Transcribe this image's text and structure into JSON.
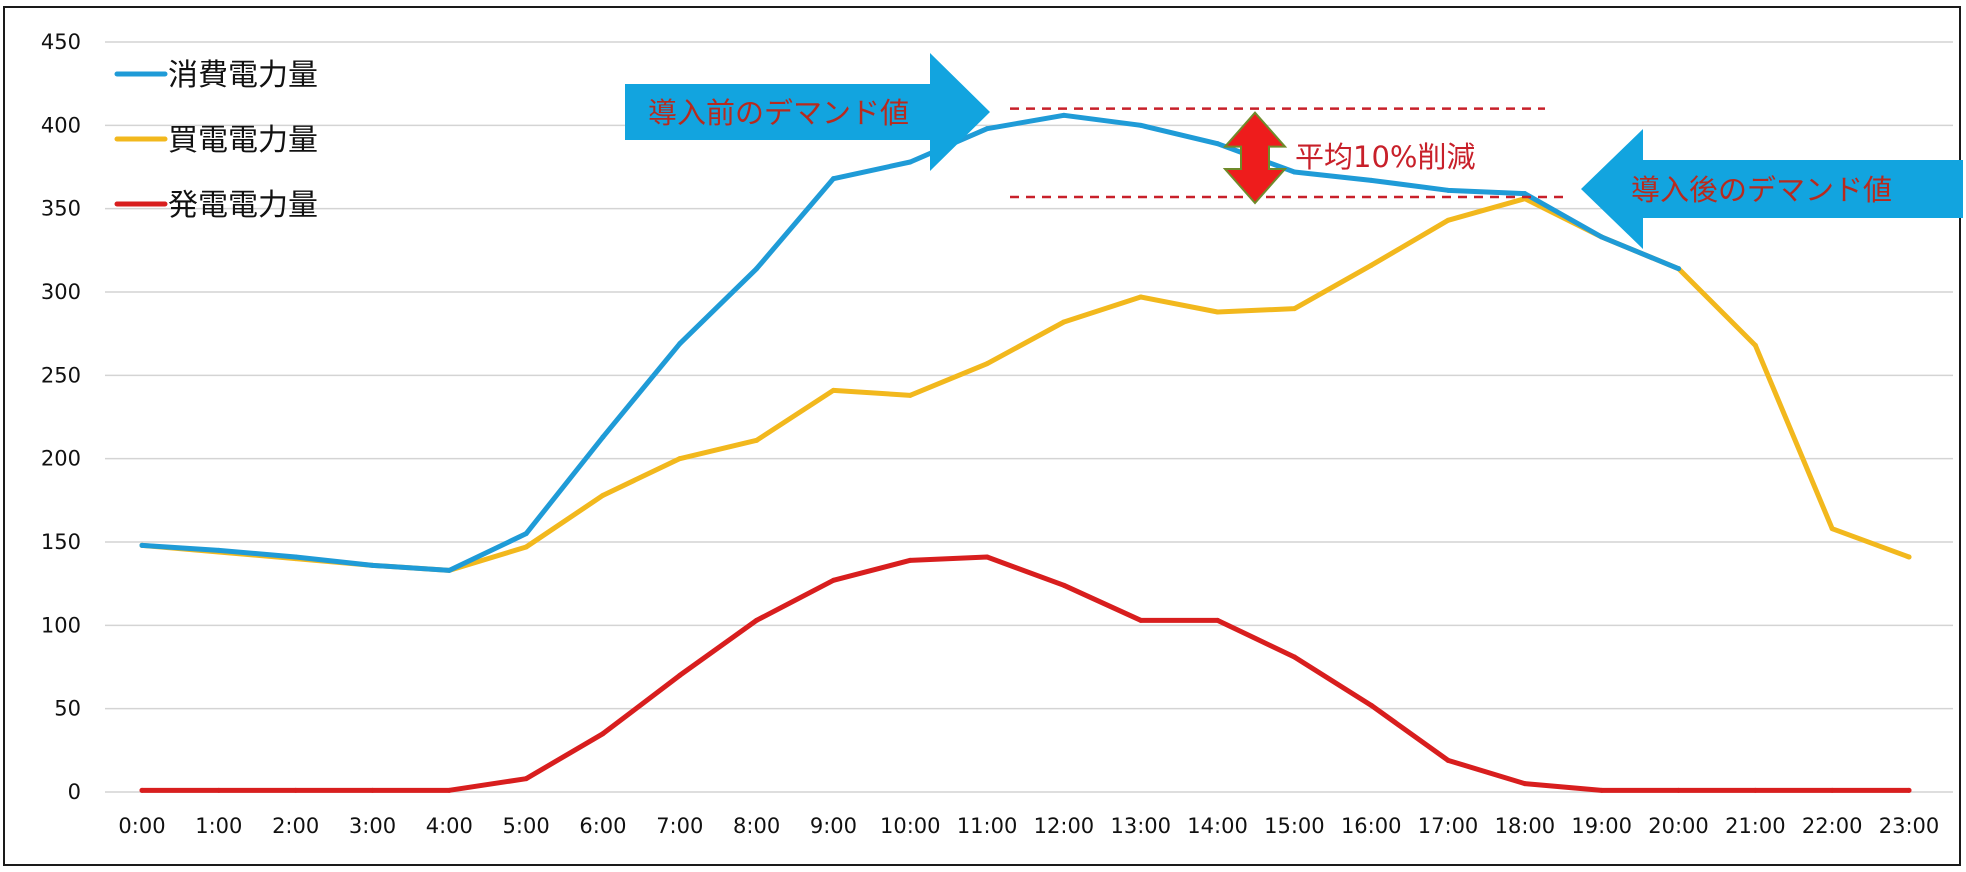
{
  "chart_data": {
    "type": "line",
    "categories": [
      "0:00",
      "1:00",
      "2:00",
      "3:00",
      "4:00",
      "5:00",
      "6:00",
      "7:00",
      "8:00",
      "9:00",
      "10:00",
      "11:00",
      "12:00",
      "13:00",
      "14:00",
      "15:00",
      "16:00",
      "17:00",
      "18:00",
      "19:00",
      "20:00",
      "21:00",
      "22:00",
      "23:00"
    ],
    "ylim": [
      0,
      450
    ],
    "yticks": [
      0,
      50,
      100,
      150,
      200,
      250,
      300,
      350,
      400,
      450
    ],
    "grid": true,
    "legend_position": "top-left",
    "series": [
      {
        "name": "消費電力量",
        "color": "#1f9bd7",
        "values": [
          148,
          145,
          141,
          136,
          133,
          155,
          213,
          269,
          314,
          368,
          378,
          398,
          406,
          400,
          389,
          372,
          367,
          361,
          359,
          333,
          314,
          null,
          null,
          null
        ]
      },
      {
        "name": "買電電力量",
        "color": "#f2b81d",
        "values": [
          148,
          144,
          140,
          136,
          133,
          147,
          178,
          200,
          211,
          241,
          238,
          257,
          282,
          297,
          288,
          290,
          316,
          343,
          356,
          333,
          314,
          268,
          158,
          141
        ]
      },
      {
        "name": "発電電力量",
        "color": "#d81e1e",
        "values": [
          1,
          1,
          1,
          1,
          1,
          8,
          35,
          70,
          103,
          127,
          139,
          141,
          124,
          103,
          103,
          81,
          52,
          19,
          5,
          1,
          1,
          1,
          1,
          1
        ]
      }
    ],
    "annotations": {
      "before_label": "導入前のデマンド値",
      "after_label": "導入後のデマンド値",
      "reduction_label": "平均10%削減",
      "before_level": 410,
      "after_level": 357
    }
  },
  "colors": {
    "grid": "#d4d4d4",
    "callout": "#12a4df",
    "callout_text": "#b82a1e",
    "reduction_arrow": "#ee1c1c",
    "reduction_text": "#c8202a",
    "dash": "#c8202a"
  }
}
